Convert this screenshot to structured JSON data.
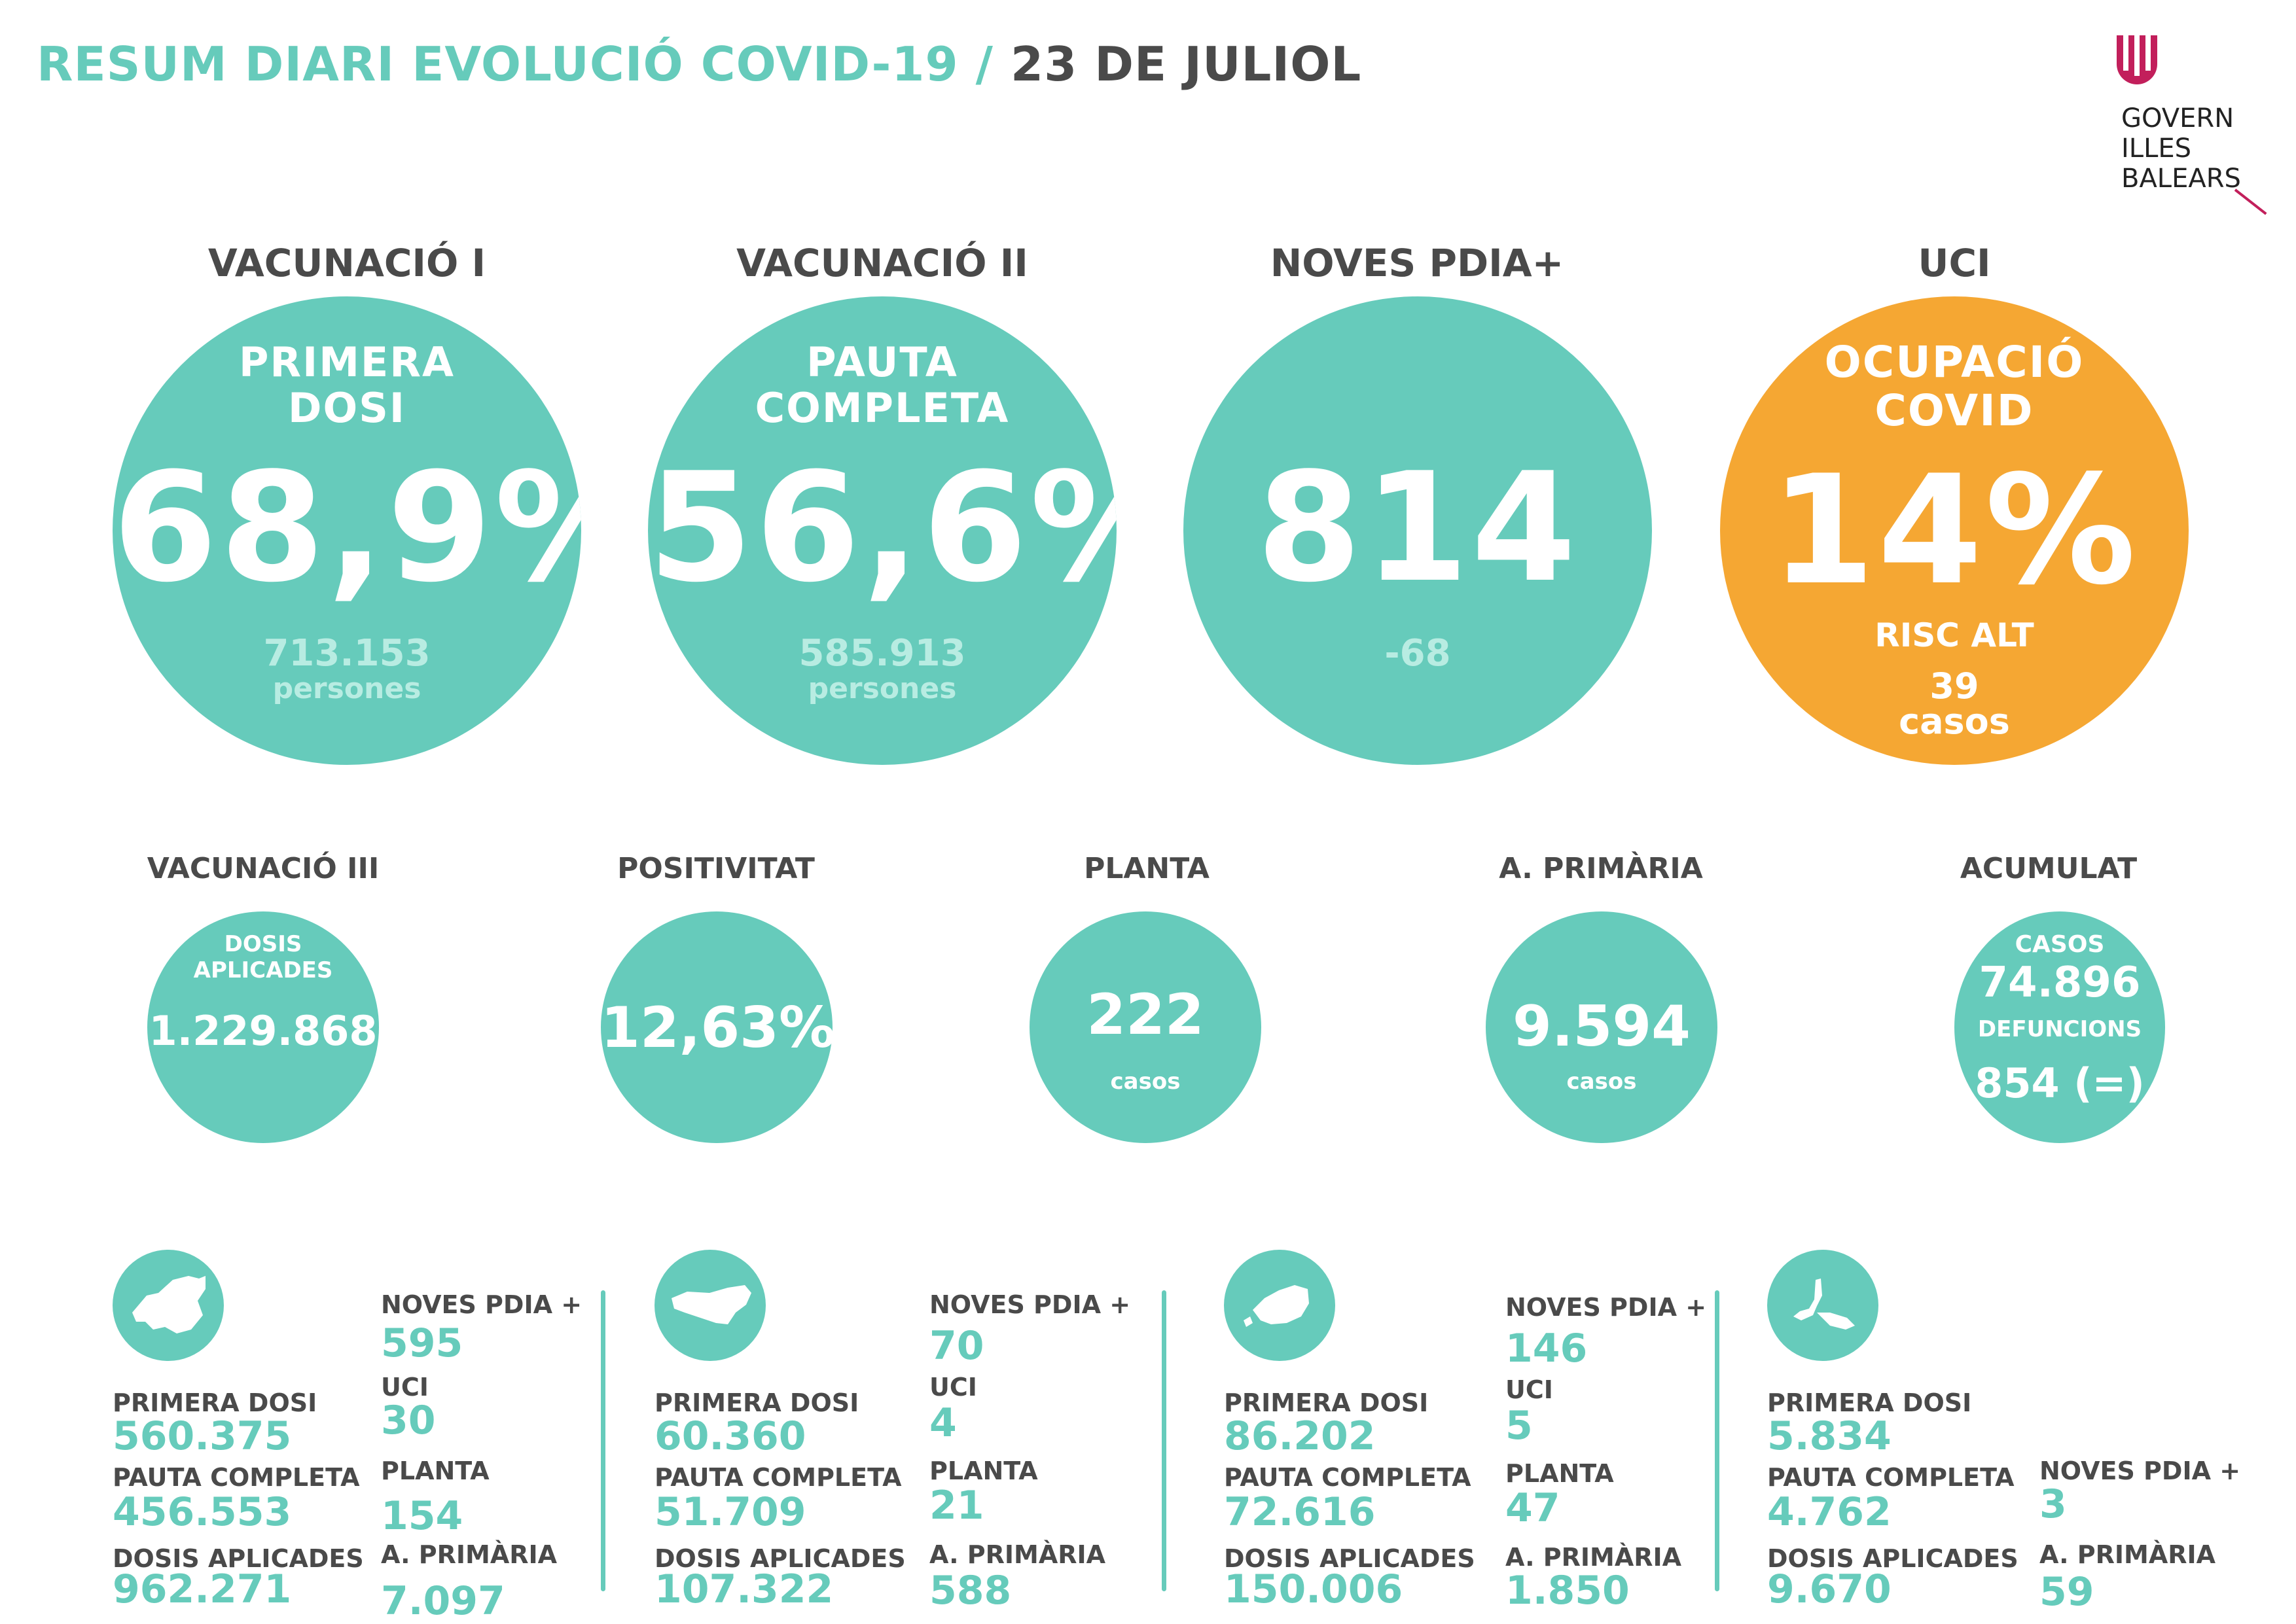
{
  "header": {
    "title_main": "RESUM DIARI EVOLUCIÓ COVID-19 /",
    "title_date": "23 DE JULIOL"
  },
  "logo": {
    "line1": "GOVERN",
    "line2": "ILLES",
    "line3": "BALEARS",
    "accent_color": "#c21f5b"
  },
  "colors": {
    "teal": "#66cbbb",
    "orange": "#f5a733",
    "dark_gray": "#4a4a4a"
  },
  "big_stats": [
    {
      "label": "VACUNACIÓ I",
      "sub1": "PRIMERA",
      "sub2": "DOSI",
      "value": "68,9%",
      "foot1": "713.153",
      "foot2": "persones"
    },
    {
      "label": "VACUNACIÓ II",
      "sub1": "PAUTA",
      "sub2": "COMPLETA",
      "value": "56,6%",
      "foot1": "585.913",
      "foot2": "persones"
    },
    {
      "label": "NOVES PDIA+",
      "value": "814",
      "foot1": "-68"
    },
    {
      "label": "UCI",
      "sub1": "OCUPACIÓ",
      "sub2": "COVID",
      "value": "14%",
      "foot1": "RISC ALT",
      "foot2": "39",
      "foot3": "casos"
    }
  ],
  "mid_stats": [
    {
      "label": "VACUNACIÓ III",
      "sub": "DOSIS",
      "sub2": "APLICADES",
      "value": "1.229.868"
    },
    {
      "label": "POSITIVITAT",
      "value": "12,63%"
    },
    {
      "label": "PLANTA",
      "value": "222",
      "foot": "casos"
    },
    {
      "label": "A. PRIMÀRIA",
      "value": "9.594",
      "foot": "casos"
    },
    {
      "label": "ACUMULAT",
      "sub": "CASOS",
      "value": "74.896",
      "sub2": "DEFUNCIONS",
      "value2": "854 (=)"
    }
  ],
  "islands": [
    {
      "icon": "mallorca-map-icon",
      "left": [
        {
          "label": "PRIMERA DOSI",
          "value": "560.375"
        },
        {
          "label": "PAUTA COMPLETA",
          "value": "456.553"
        },
        {
          "label": "DOSIS APLICADES",
          "value": "962.271"
        }
      ],
      "right": [
        {
          "label": "NOVES PDIA +",
          "value": "595"
        },
        {
          "label": "UCI",
          "value": "30"
        },
        {
          "label": "PLANTA",
          "value": "154"
        },
        {
          "label": "A. PRIMÀRIA",
          "value": "7.097"
        }
      ]
    },
    {
      "icon": "menorca-map-icon",
      "left": [
        {
          "label": "PRIMERA DOSI",
          "value": "60.360"
        },
        {
          "label": "PAUTA COMPLETA",
          "value": "51.709"
        },
        {
          "label": "DOSIS APLICADES",
          "value": "107.322"
        }
      ],
      "right": [
        {
          "label": "NOVES PDIA +",
          "value": "70"
        },
        {
          "label": "UCI",
          "value": "4"
        },
        {
          "label": "PLANTA",
          "value": "21"
        },
        {
          "label": "A. PRIMÀRIA",
          "value": "588"
        }
      ]
    },
    {
      "icon": "ibiza-map-icon",
      "left": [
        {
          "label": "PRIMERA DOSI",
          "value": "86.202"
        },
        {
          "label": "PAUTA COMPLETA",
          "value": "72.616"
        },
        {
          "label": "DOSIS APLICADES",
          "value": "150.006"
        }
      ],
      "right": [
        {
          "label": "NOVES PDIA +",
          "value": "146"
        },
        {
          "label": "UCI",
          "value": "5"
        },
        {
          "label": "PLANTA",
          "value": "47"
        },
        {
          "label": "A. PRIMÀRIA",
          "value": "1.850"
        }
      ]
    },
    {
      "icon": "formentera-map-icon",
      "left": [
        {
          "label": "PRIMERA DOSI",
          "value": "5.834"
        },
        {
          "label": "PAUTA COMPLETA",
          "value": "4.762"
        },
        {
          "label": "DOSIS APLICADES",
          "value": "9.670"
        }
      ],
      "right": [
        {
          "label": "NOVES PDIA +",
          "value": "3"
        },
        {
          "label": "A. PRIMÀRIA",
          "value": "59"
        }
      ]
    }
  ]
}
